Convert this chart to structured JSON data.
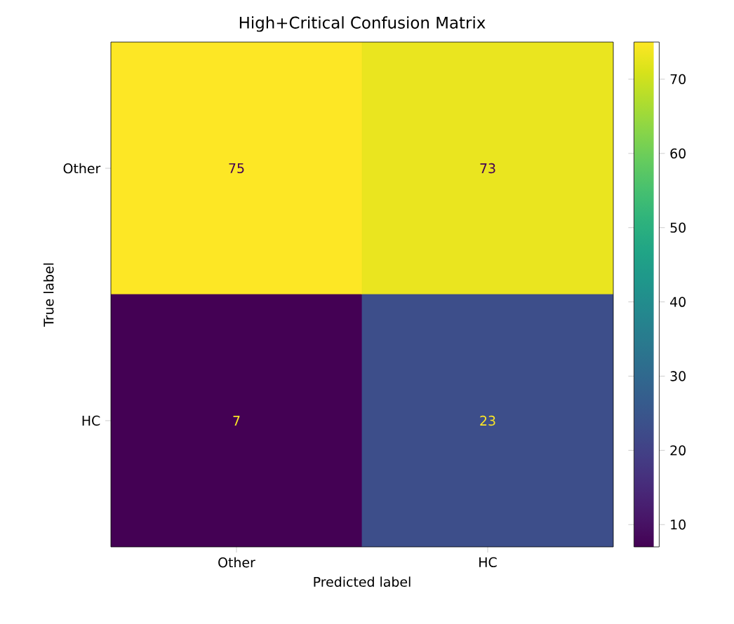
{
  "chart_data": {
    "type": "heatmap",
    "title": "High+Critical Confusion Matrix",
    "xlabel": "Predicted label",
    "ylabel": "True label",
    "categories": [
      "Other",
      "HC"
    ],
    "y_categories": [
      "Other",
      "HC"
    ],
    "cells": [
      [
        75,
        73
      ],
      [
        7,
        23
      ]
    ],
    "data_labels": true,
    "clim": [
      7,
      75
    ],
    "cticks": [
      10,
      20,
      30,
      40,
      50,
      60,
      70
    ]
  }
}
